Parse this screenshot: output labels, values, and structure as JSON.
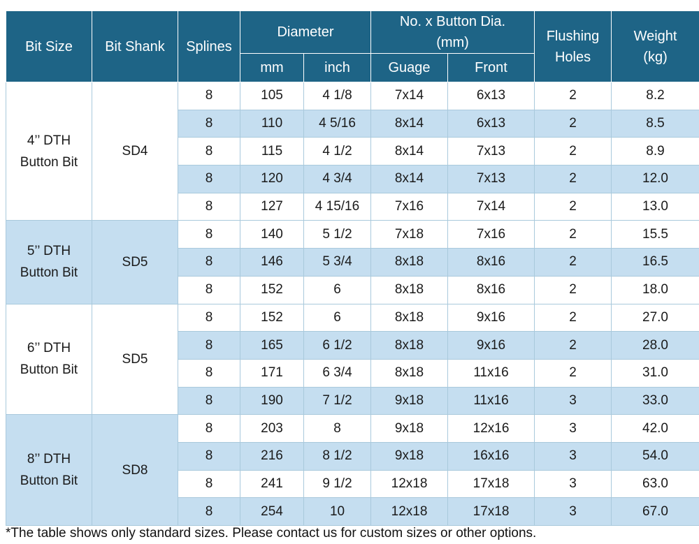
{
  "headers": {
    "bit_size": "Bit Size",
    "bit_shank": "Bit Shank",
    "splines": "Splines",
    "diameter": "Diameter",
    "diameter_mm": "mm",
    "diameter_inch": "inch",
    "button_dia_line1": "No. x Button Dia.",
    "button_dia_line2": "(mm)",
    "guage": "Guage",
    "front": "Front",
    "flushing_line1": "Flushing",
    "flushing_line2": "Holes",
    "weight_line1": "Weight",
    "weight_line2": "(kg)"
  },
  "groups": [
    {
      "bit_size_line1": "4’’ DTH",
      "bit_size_line2": "Button Bit",
      "shank": "SD4",
      "rows": [
        {
          "splines": "8",
          "mm": "105",
          "inch": "4 1/8",
          "guage": "7x14",
          "front": "6x13",
          "holes": "2",
          "weight": "8.2"
        },
        {
          "splines": "8",
          "mm": "110",
          "inch": "4 5/16",
          "guage": "8x14",
          "front": "6x13",
          "holes": "2",
          "weight": "8.5"
        },
        {
          "splines": "8",
          "mm": "115",
          "inch": "4 1/2",
          "guage": "8x14",
          "front": "7x13",
          "holes": "2",
          "weight": "8.9"
        },
        {
          "splines": "8",
          "mm": "120",
          "inch": "4 3/4",
          "guage": "8x14",
          "front": "7x13",
          "holes": "2",
          "weight": "12.0"
        },
        {
          "splines": "8",
          "mm": "127",
          "inch": "4 15/16",
          "guage": "7x16",
          "front": "7x14",
          "holes": "2",
          "weight": "13.0"
        }
      ]
    },
    {
      "bit_size_line1": "5’’ DTH",
      "bit_size_line2": "Button Bit",
      "shank": "SD5",
      "rows": [
        {
          "splines": "8",
          "mm": "140",
          "inch": "5 1/2",
          "guage": "7x18",
          "front": "7x16",
          "holes": "2",
          "weight": "15.5"
        },
        {
          "splines": "8",
          "mm": "146",
          "inch": "5 3/4",
          "guage": "8x18",
          "front": "8x16",
          "holes": "2",
          "weight": "16.5"
        },
        {
          "splines": "8",
          "mm": "152",
          "inch": "6",
          "guage": "8x18",
          "front": "8x16",
          "holes": "2",
          "weight": "18.0"
        }
      ]
    },
    {
      "bit_size_line1": "6’’ DTH",
      "bit_size_line2": "Button Bit",
      "shank": "SD5",
      "rows": [
        {
          "splines": "8",
          "mm": "152",
          "inch": "6",
          "guage": "8x18",
          "front": "9x16",
          "holes": "2",
          "weight": "27.0"
        },
        {
          "splines": "8",
          "mm": "165",
          "inch": "6 1/2",
          "guage": "8x18",
          "front": "9x16",
          "holes": "2",
          "weight": "28.0"
        },
        {
          "splines": "8",
          "mm": "171",
          "inch": "6 3/4",
          "guage": "8x18",
          "front": "11x16",
          "holes": "2",
          "weight": "31.0"
        },
        {
          "splines": "8",
          "mm": "190",
          "inch": "7 1/2",
          "guage": "9x18",
          "front": "11x16",
          "holes": "3",
          "weight": "33.0"
        }
      ]
    },
    {
      "bit_size_line1": "8’’ DTH",
      "bit_size_line2": "Button Bit",
      "shank": "SD8",
      "rows": [
        {
          "splines": "8",
          "mm": "203",
          "inch": "8",
          "guage": "9x18",
          "front": "12x16",
          "holes": "3",
          "weight": "42.0"
        },
        {
          "splines": "8",
          "mm": "216",
          "inch": "8 1/2",
          "guage": "9x18",
          "front": "16x16",
          "holes": "3",
          "weight": "54.0"
        },
        {
          "splines": "8",
          "mm": "241",
          "inch": "9 1/2",
          "guage": "12x18",
          "front": "17x18",
          "holes": "3",
          "weight": "63.0"
        },
        {
          "splines": "8",
          "mm": "254",
          "inch": "10",
          "guage": "12x18",
          "front": "17x18",
          "holes": "3",
          "weight": "67.0"
        }
      ]
    }
  ],
  "footnote": "*The table shows only standard sizes. Please contact us for custom sizes or other options.",
  "colors": {
    "header_bg": "#1e6486",
    "header_text": "#ffffff",
    "row_blue": "#c5def0",
    "row_white": "#ffffff"
  }
}
